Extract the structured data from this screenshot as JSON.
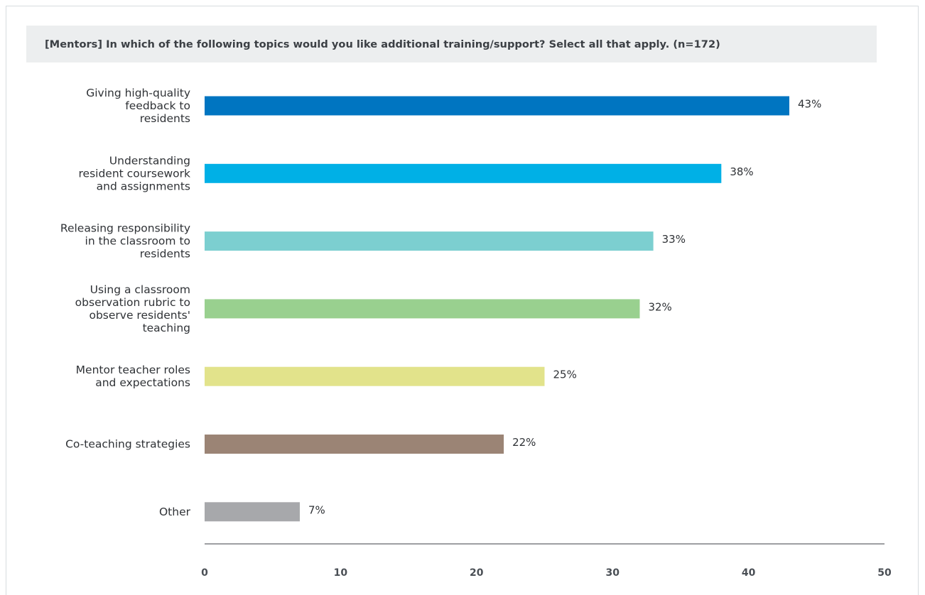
{
  "chart_data": {
    "type": "bar",
    "orientation": "horizontal",
    "title": "[Mentors] In which of the following topics would you like additional training/support? Select all that apply. (n=172)",
    "categories": [
      [
        "Giving high-quality",
        "feedback to",
        "residents"
      ],
      [
        "Understanding",
        "resident coursework",
        "and assignments"
      ],
      [
        "Releasing responsibility",
        "in the classroom to",
        "residents"
      ],
      [
        "Using a classroom",
        "observation rubric to",
        "observe residents'",
        "teaching"
      ],
      [
        "Mentor teacher roles",
        "and expectations"
      ],
      [
        "Co-teaching strategies"
      ],
      [
        "Other"
      ]
    ],
    "values": [
      43,
      38,
      33,
      32,
      25,
      22,
      7
    ],
    "value_labels": [
      "43%",
      "38%",
      "33%",
      "32%",
      "25%",
      "22%",
      "7%"
    ],
    "colors": [
      "#0075c1",
      "#00b0e6",
      "#7ccfd0",
      "#99d08f",
      "#e2e38b",
      "#9b8475",
      "#a7a8ab"
    ],
    "xlim": [
      0,
      50
    ],
    "xticks": [
      0,
      10,
      20,
      30,
      40,
      50
    ],
    "xtick_labels": [
      "0",
      "10",
      "20",
      "30",
      "40",
      "50"
    ],
    "xlabel": "",
    "ylabel": "",
    "grid": false,
    "legend": "none"
  }
}
